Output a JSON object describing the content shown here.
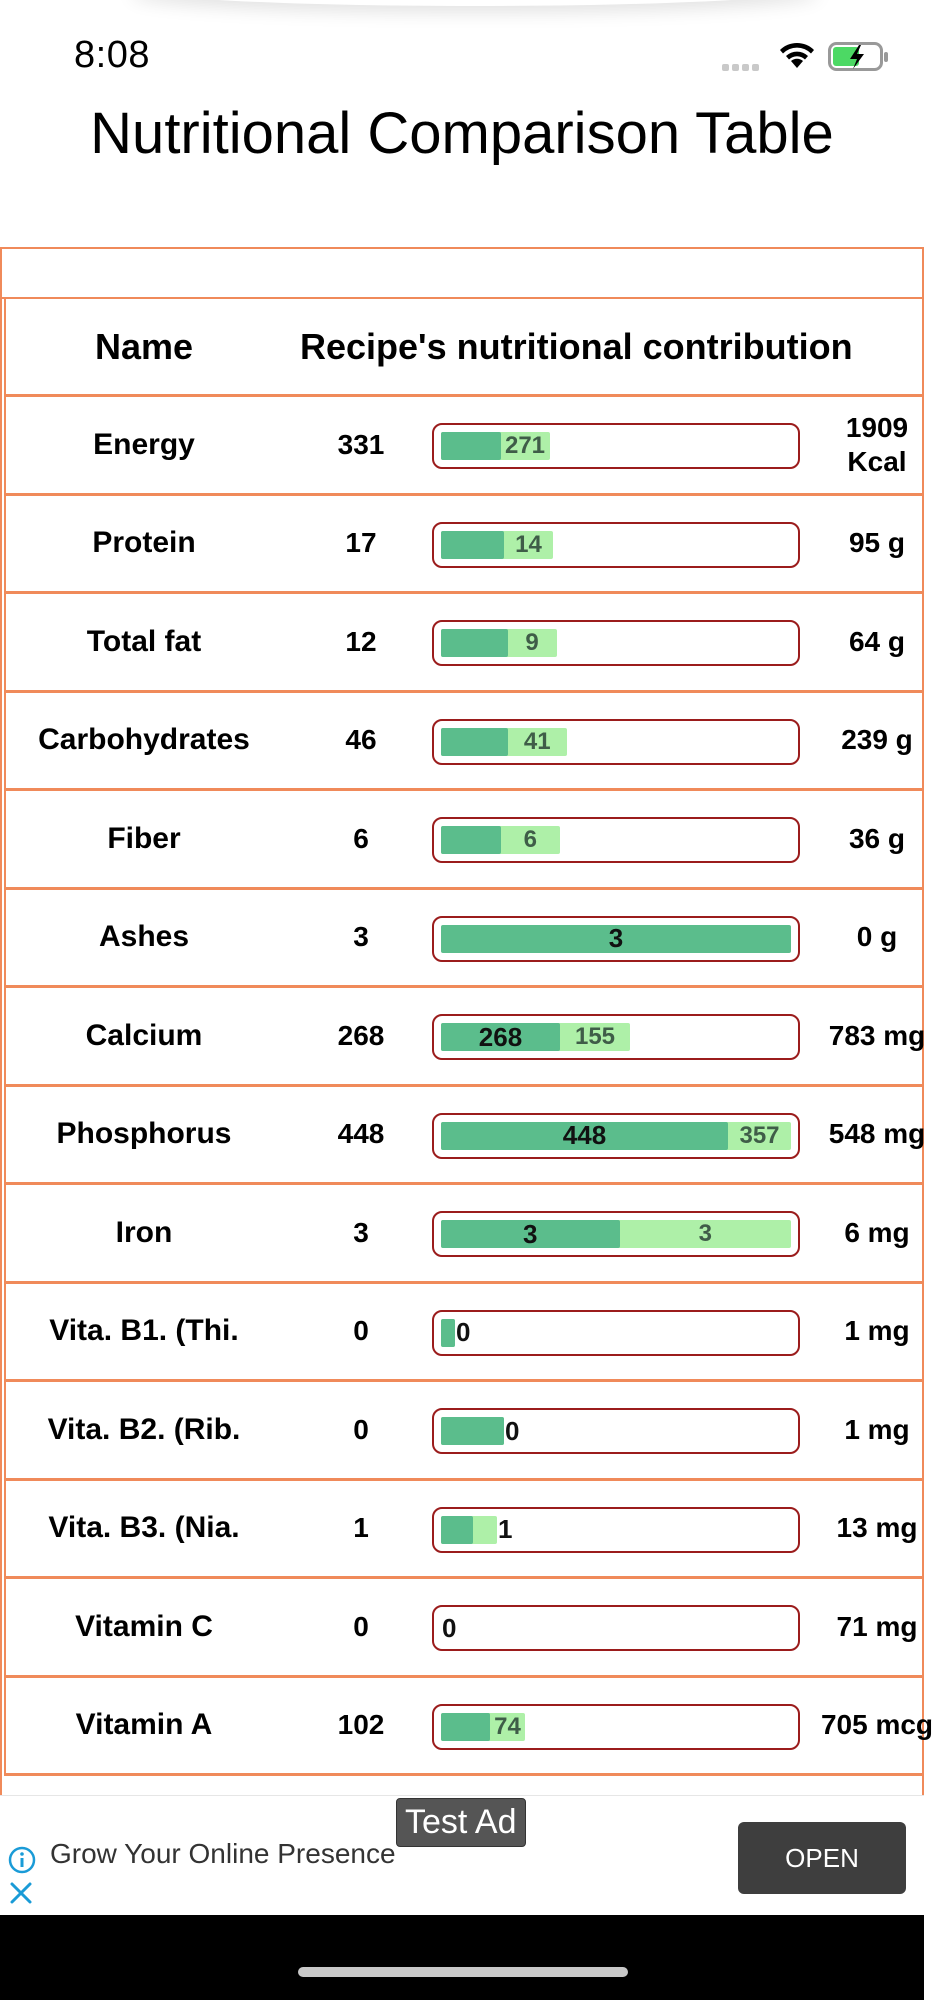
{
  "status_bar": {
    "time": "8:08",
    "icons": [
      "cellular-signal-icon",
      "wifi-icon",
      "battery-charging-icon"
    ],
    "battery_color": "#4cd964"
  },
  "title": "Nutritional Comparison Table",
  "table": {
    "header": {
      "name": "Name",
      "contribution": "Recipe's nutritional contribution"
    },
    "colors": {
      "border": "#f08a5a",
      "bar_outline": "#9b1c1c",
      "recipe_fill": "#5bbd8c",
      "reference_fill": "#aef0a8"
    },
    "rows": [
      {
        "name": "Energy",
        "value": "331",
        "recipe_label": "",
        "reference_label": "271",
        "total": "1909\nKcal",
        "recipe_fraction": 0.17,
        "reference_fraction": 0.31
      },
      {
        "name": "Protein",
        "value": "17",
        "recipe_label": "",
        "reference_label": "14",
        "total": "95 g",
        "recipe_fraction": 0.18,
        "reference_fraction": 0.32
      },
      {
        "name": "Total fat",
        "value": "12",
        "recipe_label": "",
        "reference_label": "9",
        "total": "64 g",
        "recipe_fraction": 0.19,
        "reference_fraction": 0.33
      },
      {
        "name": "Carbohydrates",
        "value": "46",
        "recipe_label": "",
        "reference_label": "41",
        "total": "239 g",
        "recipe_fraction": 0.19,
        "reference_fraction": 0.36
      },
      {
        "name": "Fiber",
        "value": "6",
        "recipe_label": "",
        "reference_label": "6",
        "total": "36 g",
        "recipe_fraction": 0.17,
        "reference_fraction": 0.34
      },
      {
        "name": "Ashes",
        "value": "3",
        "recipe_label": "3",
        "reference_label": "",
        "total": "0 g",
        "recipe_fraction": 1.0,
        "reference_fraction": 0
      },
      {
        "name": "Calcium",
        "value": "268",
        "recipe_label": "268",
        "reference_label": "155",
        "total": "783 mg",
        "recipe_fraction": 0.34,
        "reference_fraction": 0.54
      },
      {
        "name": "Phosphorus",
        "value": "448",
        "recipe_label": "448",
        "reference_label": "357",
        "total": "548 mg",
        "recipe_fraction": 0.82,
        "reference_fraction": 1.0
      },
      {
        "name": "Iron",
        "value": "3",
        "recipe_label": "3",
        "reference_label": "3",
        "total": "6 mg",
        "recipe_fraction": 0.51,
        "reference_fraction": 1.0
      },
      {
        "name": "Vita. B1. (Thi.",
        "value": "0",
        "recipe_label": "",
        "reference_label": "0",
        "total": "1 mg",
        "recipe_fraction": 0.04,
        "reference_fraction": 0.04
      },
      {
        "name": "Vita. B2. (Rib.",
        "value": "0",
        "recipe_label": "",
        "reference_label": "0",
        "total": "1 mg",
        "recipe_fraction": 0.18,
        "reference_fraction": 0.18
      },
      {
        "name": "Vita. B3. (Nia.",
        "value": "1",
        "recipe_label": "",
        "reference_label": "1",
        "total": "13 mg",
        "recipe_fraction": 0.09,
        "reference_fraction": 0.16
      },
      {
        "name": "Vitamin C",
        "value": "0",
        "recipe_label": "",
        "reference_label": "0",
        "total": "71 mg",
        "recipe_fraction": 0,
        "reference_fraction": 0
      },
      {
        "name": "Vitamin A",
        "value": "102",
        "recipe_label": "",
        "reference_label": "74",
        "total": "705 mcg",
        "recipe_fraction": 0.14,
        "reference_fraction": 0.24
      }
    ]
  },
  "ad": {
    "badge": "Test Ad",
    "text": "Grow Your Online Presence",
    "button": "OPEN"
  }
}
